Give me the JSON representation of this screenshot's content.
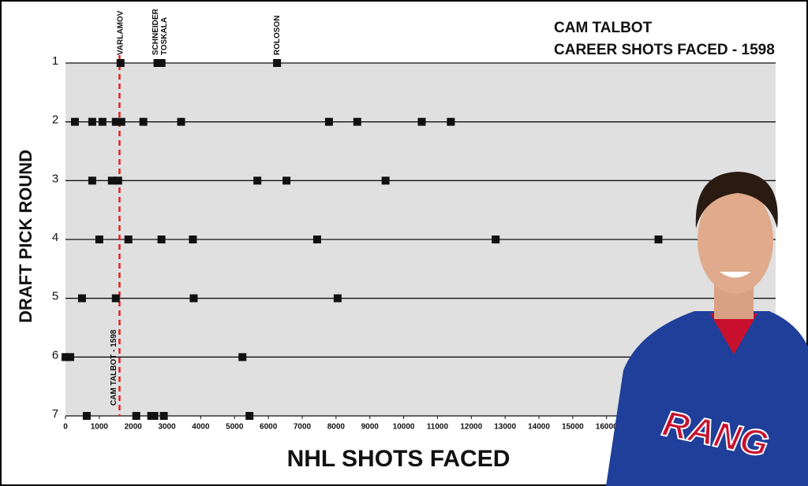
{
  "chart_data": {
    "type": "scatter",
    "title": "CAM TALBOT",
    "subtitle": "CAREER SHOTS FACED - 1598",
    "x_label": "NHL SHOTS FACED",
    "y_label": "DRAFT PICK ROUND",
    "xlim": [
      0,
      21000
    ],
    "xticks": [
      0,
      1000,
      2000,
      3000,
      4000,
      5000,
      6000,
      7000,
      8000,
      9000,
      10000,
      11000,
      12000,
      13000,
      14000,
      15000,
      16000
    ],
    "ylim": [
      1,
      7
    ],
    "yticks": [
      1,
      2,
      3,
      4,
      5,
      6,
      7
    ],
    "y_inverted": true,
    "grid": true,
    "background": "#e0e0e0",
    "series": [
      {
        "color": "#111111",
        "x": [
          1628,
          2720,
          2840,
          6256,
          279,
          791,
          1093,
          1488,
          1651,
          2302,
          3419,
          7791,
          8628,
          10535,
          11395,
          791,
          1372,
          1558,
          5674,
          6535,
          9465,
          1000,
          1860,
          2837,
          3767,
          7442,
          12721,
          17535,
          488,
          1488,
          3791,
          8047,
          0,
          140,
          5233,
          628,
          2093,
          2535,
          2628,
          2907,
          5442
        ],
        "values": [
          1,
          1,
          1,
          1,
          2,
          2,
          2,
          2,
          2,
          2,
          2,
          2,
          2,
          2,
          2,
          3,
          3,
          3,
          3,
          3,
          3,
          4,
          4,
          4,
          4,
          4,
          4,
          4,
          5,
          5,
          5,
          5,
          6,
          6,
          6,
          7,
          7,
          7,
          7,
          7,
          7
        ]
      }
    ],
    "reference": {
      "value": 1598,
      "label": "CAM TALBOT - 1598",
      "color": "#e0201b"
    },
    "annotations": [
      {
        "text": "VARLAMOV",
        "x": 1628
      },
      {
        "text": "SCHNEIDER",
        "x": 2674
      },
      {
        "text": "TOSKALA",
        "x": 2930
      },
      {
        "text": "ROLOSON",
        "x": 6256
      }
    ],
    "jersey_text": "RANG"
  }
}
